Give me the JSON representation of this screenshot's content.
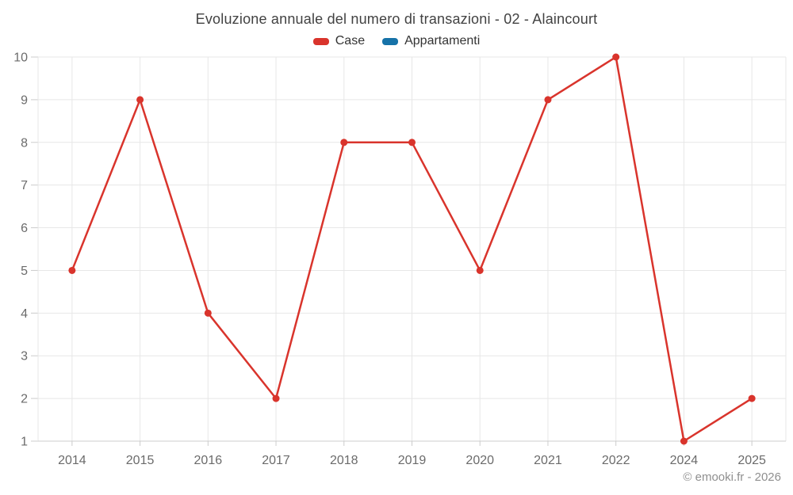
{
  "chart_data": {
    "type": "line",
    "title": "Evoluzione annuale del numero di transazioni - 02 - Alaincourt",
    "categories": [
      "2014",
      "2015",
      "2016",
      "2017",
      "2018",
      "2019",
      "2020",
      "2021",
      "2022",
      "2024",
      "2025"
    ],
    "series": [
      {
        "name": "Case",
        "color": "#d9342c",
        "values": [
          5,
          9,
          4,
          2,
          8,
          8,
          5,
          9,
          10,
          1,
          2
        ]
      },
      {
        "name": "Appartamenti",
        "color": "#1672a8",
        "values": []
      }
    ],
    "xlabel": "",
    "ylabel": "",
    "ylim": [
      1,
      10
    ],
    "yticks": [
      1,
      2,
      3,
      4,
      5,
      6,
      7,
      8,
      9,
      10
    ],
    "grid": true,
    "legend_position": "top",
    "marker": "circle"
  },
  "footer": {
    "credit": "© emooki.fr - 2026"
  },
  "style": {
    "grid_color": "#e7e7e7",
    "axis_color": "#cccccc",
    "label_color": "#6b6b6b",
    "title_color": "#424242",
    "background": "#ffffff"
  }
}
